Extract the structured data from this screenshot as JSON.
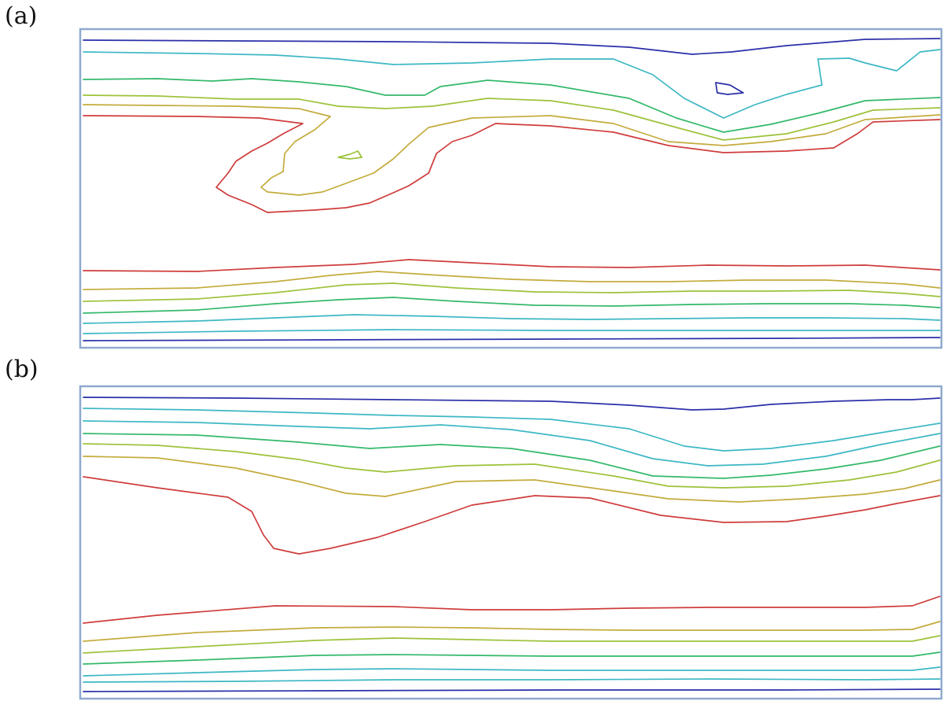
{
  "panels": [
    {
      "label": "(a)"
    },
    {
      "label": "(b)"
    }
  ],
  "colors": {
    "frame": "#8fa9cf",
    "level_1": "#2a2fa8",
    "level_2": "#3cb7c4",
    "level_3": "#33b86a",
    "level_4": "#9cc23a",
    "level_5": "#c4ab3c",
    "level_6": "#cf3c3c"
  }
}
